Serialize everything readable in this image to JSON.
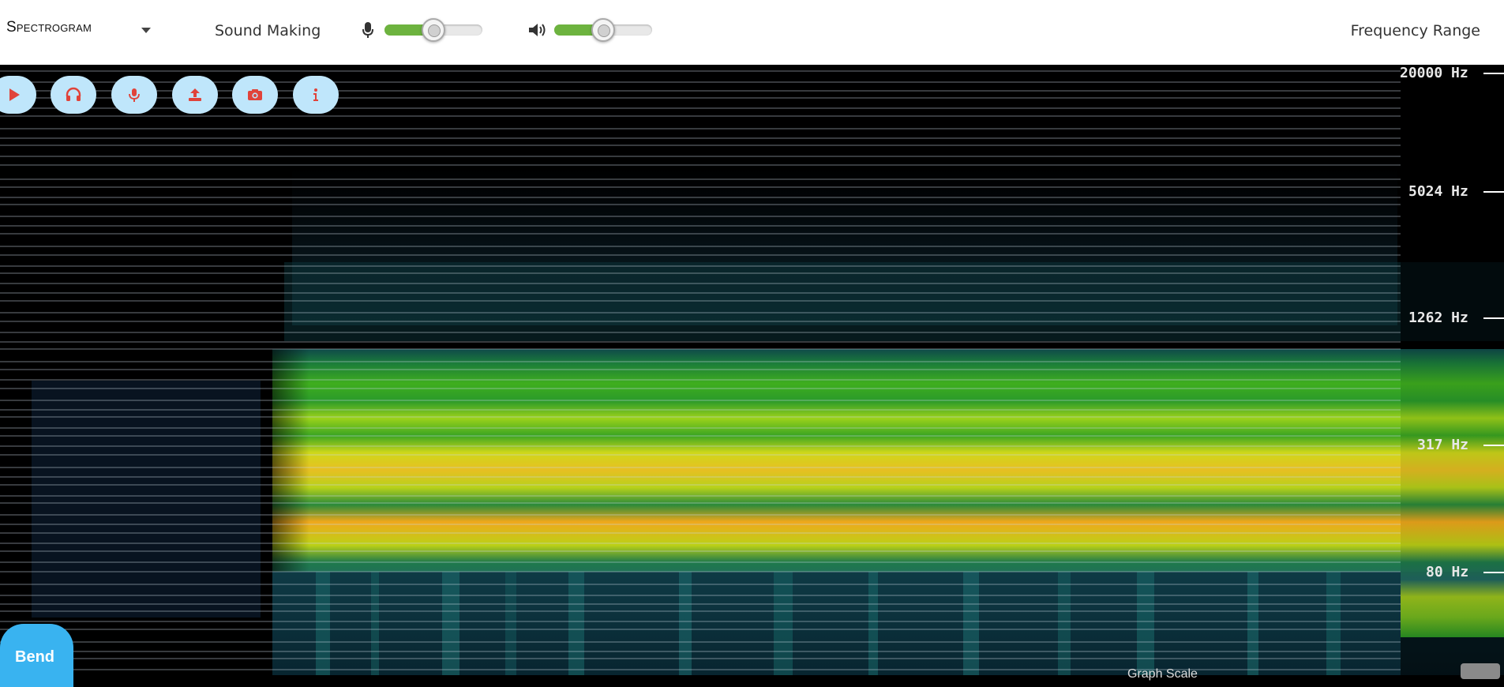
{
  "header": {
    "app_title": "Spectrogram",
    "sound_menu_label": "Sound Making",
    "frequency_menu_label": "Frequency Range",
    "mic_volume_fraction": 0.5,
    "speaker_volume_fraction": 0.5
  },
  "toolbar": {
    "buttons": [
      {
        "name": "play",
        "icon": "play-icon"
      },
      {
        "name": "listen",
        "icon": "headphones-icon"
      },
      {
        "name": "record",
        "icon": "microphone-icon"
      },
      {
        "name": "upload",
        "icon": "upload-icon"
      },
      {
        "name": "snapshot",
        "icon": "camera-icon"
      },
      {
        "name": "info",
        "icon": "info-icon"
      }
    ]
  },
  "frequency_axis": {
    "ticks": [
      "20000 Hz",
      "5024 Hz",
      "1262 Hz",
      "317 Hz",
      "80 Hz"
    ]
  },
  "footer": {
    "bend_label": "Bend",
    "graph_scale_label": "Graph Scale"
  },
  "colors": {
    "accent": "#39b3f0",
    "button_bg": "#bfe6fb",
    "icon_red": "#e0433a",
    "slider_green": "#6db33f"
  }
}
